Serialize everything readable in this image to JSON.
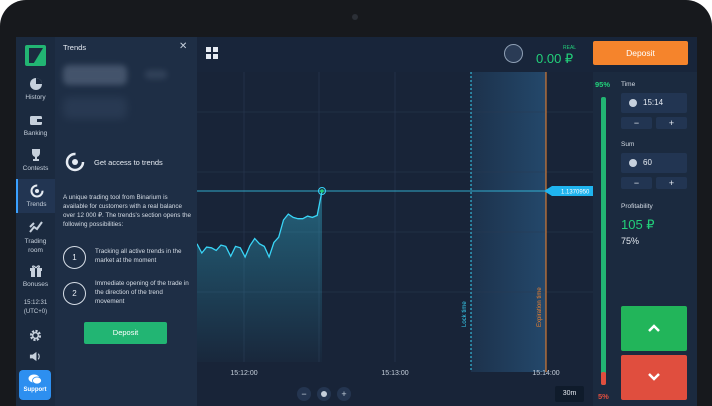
{
  "sidebar": {
    "items": [
      {
        "label": "History",
        "icon": "history-icon"
      },
      {
        "label": "Banking",
        "icon": "wallet-icon"
      },
      {
        "label": "Contests",
        "icon": "trophy-icon"
      },
      {
        "label": "Trends",
        "icon": "trends-icon"
      },
      {
        "label": "Trading room",
        "icon": "trading-room-icon"
      },
      {
        "label": "Bonuses",
        "icon": "gift-icon"
      }
    ],
    "time": "15:12:31",
    "timezone": "(UTC+0)",
    "support_label": "Support"
  },
  "trends_panel": {
    "title": "Trends",
    "access_title": "Get access to trends",
    "description": "A unique trading tool from Binarium is available for customers with a real balance over 12 000 ₽. The trends's section opens the following possibilities:",
    "steps": [
      {
        "num": "1",
        "text": "Tracking all active trends in the market at the moment"
      },
      {
        "num": "2",
        "text": "Immediate opening of the trade in the direction of the trend movement"
      }
    ],
    "deposit_label": "Deposit"
  },
  "header": {
    "account_type": "REAL",
    "balance": "0.00 ₽",
    "deposit_label": "Deposit"
  },
  "chart": {
    "current_price": "1.1370950",
    "lock_label": "Lock time",
    "expiration_label": "Expiration time",
    "time_ticks": [
      "15:12:00",
      "15:13:00",
      "15:14:00"
    ],
    "timeframe": "30m",
    "zoom_out": "−",
    "zoom_in": "+"
  },
  "chart_data": {
    "type": "line",
    "x": [
      0,
      1,
      2,
      3,
      4,
      5,
      6,
      7,
      8,
      9,
      10,
      11,
      12,
      13,
      14,
      15,
      16,
      17,
      18,
      19,
      20,
      21,
      22,
      23,
      24,
      25,
      26
    ],
    "values": [
      2.0,
      0.6,
      1.5,
      1.4,
      1.0,
      1.8,
      1.6,
      0.1,
      1.6,
      1.4,
      0.0,
      1.7,
      2.8,
      2.0,
      1.6,
      0.0,
      2.2,
      3.0,
      5.6,
      6.5,
      6.0,
      5.8,
      5.8,
      6.2,
      6.0,
      6.3,
      10.0
    ],
    "series": [
      {
        "name": "",
        "values": [
          2.0,
          0.6,
          1.5,
          1.4,
          1.0,
          1.8,
          1.6,
          0.1,
          1.6,
          1.4,
          0.0,
          1.7,
          2.8,
          2.0,
          1.6,
          0.0,
          2.2,
          3.0,
          5.6,
          6.5,
          6.0,
          5.8,
          5.8,
          6.2,
          6.0,
          6.3,
          10.0
        ]
      }
    ],
    "grid": true
  },
  "right_panel": {
    "prob_up": "95%",
    "prob_down": "5%",
    "time_label": "Time",
    "time_value": "15:14",
    "sum_label": "Sum",
    "sum_value": "60",
    "minus": "−",
    "plus": "+",
    "profit_label": "Profitability",
    "profit_value": "105 ₽",
    "profit_percent": "75%"
  },
  "colors": {
    "accent_green": "#22b573",
    "accent_orange": "#f5842c",
    "accent_red": "#e04e3e",
    "chart_line": "#39d5f7"
  }
}
